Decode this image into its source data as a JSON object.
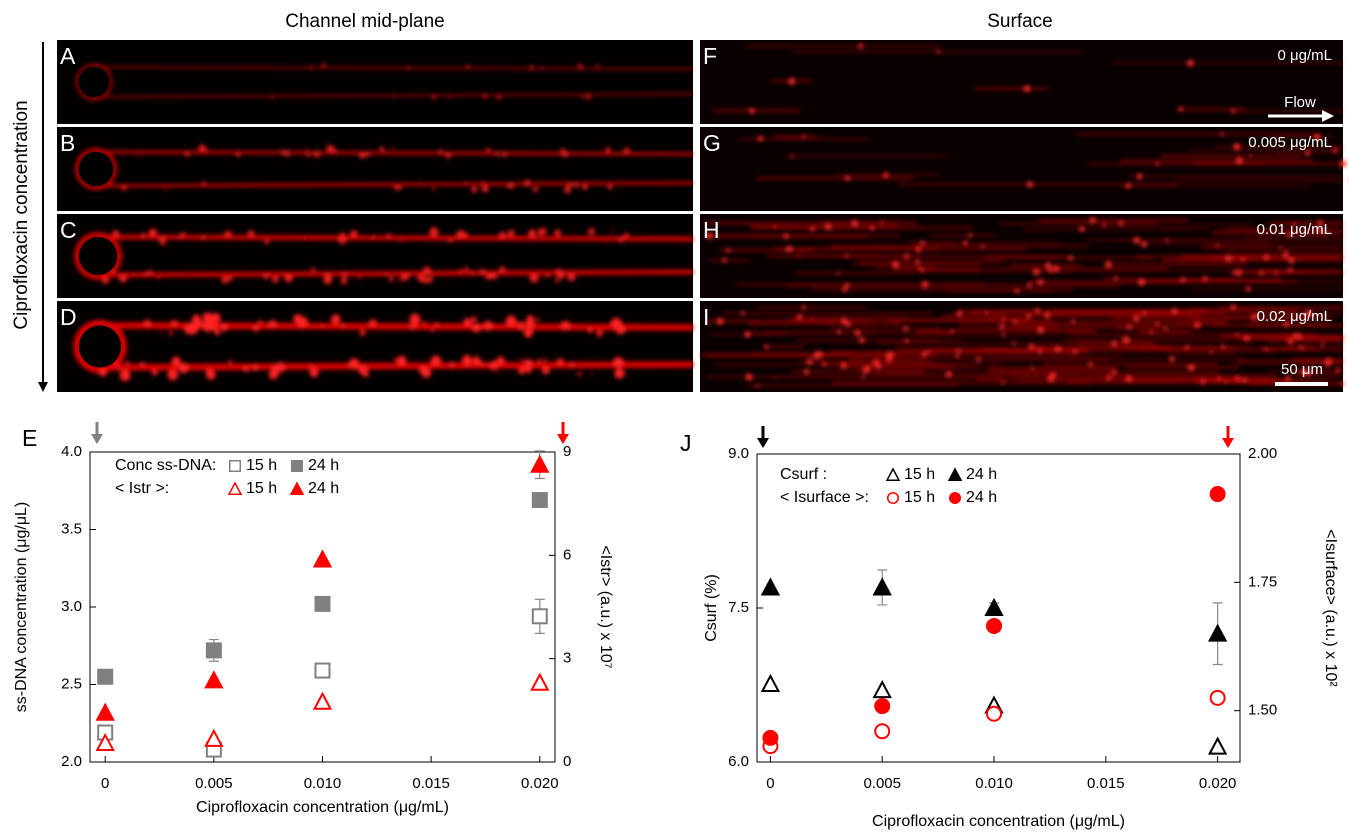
{
  "figure": {
    "columns": [
      "Channel mid-plane",
      "Surface"
    ],
    "side_label": "Ciprofloxacin concentration",
    "left_panels": [
      "A",
      "B",
      "C",
      "D"
    ],
    "right_panels": [
      "F",
      "G",
      "H",
      "I"
    ],
    "right_concentrations": [
      "0 μg/mL",
      "0.005 μg/mL",
      "0.01 μg/mL",
      "0.02 μg/mL"
    ],
    "flow": "Flow",
    "scale_bar": "50 μm"
  },
  "chart_data": [
    {
      "type": "scatter",
      "panel": "E",
      "xlabel": "Ciprofloxacin concentration (μg/mL)",
      "ylabel": "ss-DNA concentration (μg/μL)",
      "y2label": "<Istr> (a.u.) x 10⁷",
      "x": [
        0,
        0.005,
        0.01,
        0.02
      ],
      "xlim": [
        -0.0007,
        0.0207
      ],
      "xticks": [
        0,
        0.005,
        {
          "value": 0.01,
          "label": "0.010"
        },
        0.015,
        {
          "value": 0.02,
          "label": "0.020"
        }
      ],
      "ylim": [
        2,
        4
      ],
      "yticks": [
        {
          "value": 2,
          "label": "2.0"
        },
        2.5,
        {
          "value": 3,
          "label": "3.0"
        },
        3.5,
        {
          "value": 4,
          "label": "4.0"
        }
      ],
      "y2lim": [
        0,
        9
      ],
      "y2ticks": [
        0,
        3,
        6,
        9
      ],
      "groups": [
        {
          "label": "Conc ss-DNA:",
          "series": [
            {
              "name": "15 h",
              "color": "#808080",
              "marker": "square",
              "filled": false,
              "values": [
                2.19,
                2.08,
                2.59,
                2.94
              ],
              "errors": [
                null,
                null,
                null,
                0.11
              ]
            },
            {
              "name": "24 h",
              "color": "#808080",
              "marker": "square",
              "filled": true,
              "values": [
                2.55,
                2.72,
                3.02,
                3.69
              ],
              "errors": [
                null,
                0.07,
                null,
                null
              ]
            }
          ]
        },
        {
          "label": "< Istr >:",
          "series": [
            {
              "name": "15 h",
              "color": "#ff0000",
              "marker": "triangle",
              "filled": false,
              "axis": "y2",
              "values": [
                0.55,
                0.67,
                1.75,
                2.3
              ],
              "errors": [
                null,
                null,
                null,
                null
              ]
            },
            {
              "name": "24 h",
              "color": "#ff0000",
              "marker": "triangle",
              "filled": true,
              "axis": "y2",
              "values": [
                1.43,
                2.37,
                5.88,
                8.63
              ],
              "errors": [
                null,
                null,
                null,
                0.4
              ]
            }
          ]
        }
      ]
    },
    {
      "type": "scatter",
      "panel": "J",
      "xlabel": "Ciprofloxacin concentration (μg/mL)",
      "ylabel": "Csurf (%)",
      "y2label": "<Isurface> (a.u.) x 10²",
      "x": [
        0,
        0.005,
        0.01,
        0.02
      ],
      "xlim": [
        -0.0006,
        0.021
      ],
      "xticks": [
        0,
        0.005,
        {
          "value": 0.01,
          "label": "0.010"
        },
        0.015,
        {
          "value": 0.02,
          "label": "0.020"
        }
      ],
      "ylim": [
        6,
        9
      ],
      "yticks": [
        {
          "value": 6,
          "label": "6.0"
        },
        7.5,
        {
          "value": 9,
          "label": "9.0"
        }
      ],
      "y2lim": [
        1.4,
        2
      ],
      "y2ticks": [
        {
          "value": 1.5,
          "label": "1.50"
        },
        1.75,
        {
          "value": 2,
          "label": "2.00"
        }
      ],
      "groups": [
        {
          "label": "Csurf :",
          "series": [
            {
              "name": "15 h",
              "color": "#000000",
              "marker": "triangle",
              "filled": false,
              "values": [
                6.76,
                6.7,
                6.55,
                6.15
              ],
              "errors": [
                null,
                null,
                null,
                null
              ]
            },
            {
              "name": "24 h",
              "color": "#000000",
              "marker": "triangle",
              "filled": true,
              "values": [
                7.7,
                7.7,
                7.5,
                7.25
              ],
              "errors": [
                null,
                0.17,
                0.05,
                0.3
              ]
            }
          ]
        },
        {
          "label": "< Isurface >:",
          "series": [
            {
              "name": "15 h",
              "color": "#ff0000",
              "marker": "circle",
              "filled": false,
              "axis": "y2",
              "values": [
                1.431,
                1.46,
                1.494,
                1.525
              ],
              "errors": [
                null,
                null,
                null,
                null
              ]
            },
            {
              "name": "24 h",
              "color": "#ff0000",
              "marker": "circle",
              "filled": true,
              "axis": "y2",
              "values": [
                1.447,
                1.509,
                1.665,
                1.922
              ],
              "errors": [
                null,
                null,
                null,
                null
              ]
            }
          ]
        }
      ]
    }
  ]
}
